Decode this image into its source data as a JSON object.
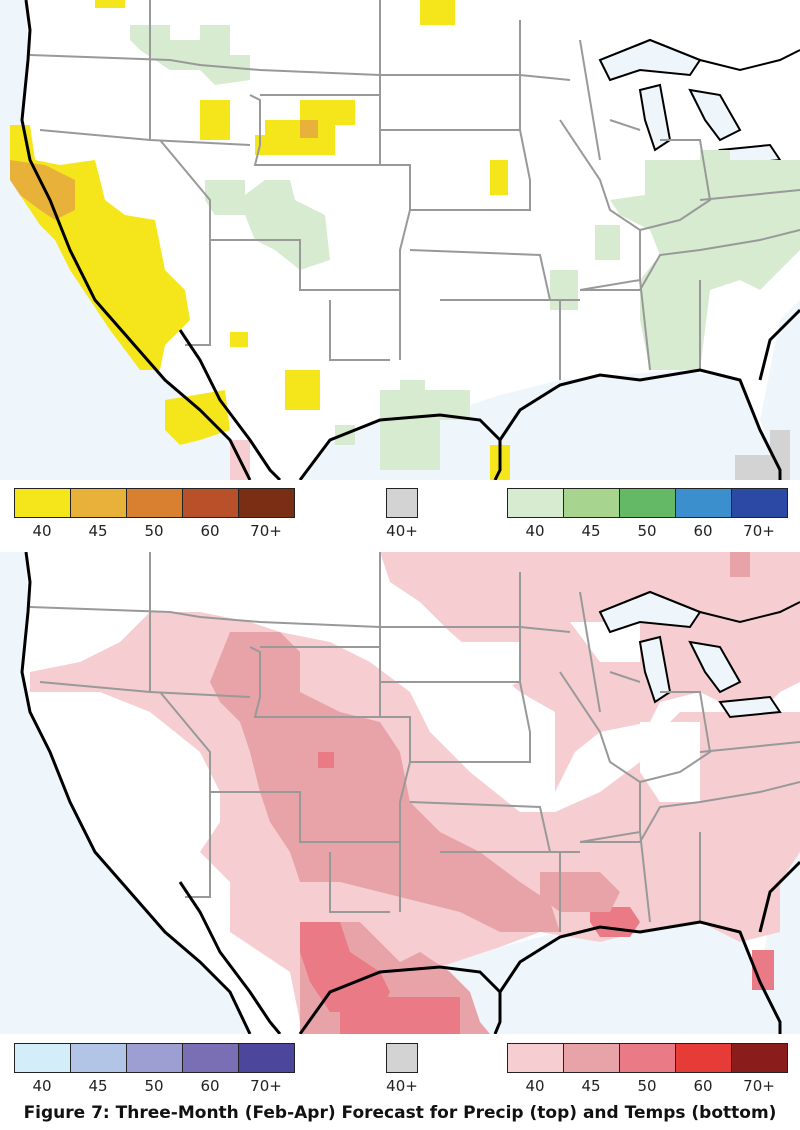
{
  "caption": "Figure 7: Three-Month (Feb-Apr) Forecast for Precip (top) and Temps (bottom)",
  "precip_legend": {
    "below": {
      "labels": [
        "40",
        "45",
        "50",
        "60",
        "70+"
      ],
      "colors": [
        "#f5e61c",
        "#e8b23a",
        "#d98030",
        "#b8502a",
        "#7a2e14"
      ]
    },
    "normal": {
      "labels": [
        "40+"
      ],
      "colors": [
        "#d3d3d3"
      ]
    },
    "above": {
      "labels": [
        "40",
        "45",
        "50",
        "60",
        "70+"
      ],
      "colors": [
        "#d6ebcf",
        "#a7d590",
        "#63b966",
        "#3b8fcc",
        "#2c49a6"
      ]
    }
  },
  "temp_legend": {
    "below": {
      "labels": [
        "40",
        "45",
        "50",
        "60",
        "70+"
      ],
      "colors": [
        "#d4eef9",
        "#b3c5e6",
        "#9d9ed1",
        "#7a6fb4",
        "#4c479c"
      ]
    },
    "normal": {
      "labels": [
        "40+"
      ],
      "colors": [
        "#d3d3d3"
      ]
    },
    "above": {
      "labels": [
        "40",
        "45",
        "50",
        "60",
        "70+"
      ],
      "colors": [
        "#f6ced2",
        "#e8a3a9",
        "#e97a86",
        "#e63b36",
        "#8b1c1c"
      ]
    }
  },
  "colors": {
    "ocean": "#eef6fb",
    "border": "#999999",
    "coast": "#000000"
  }
}
